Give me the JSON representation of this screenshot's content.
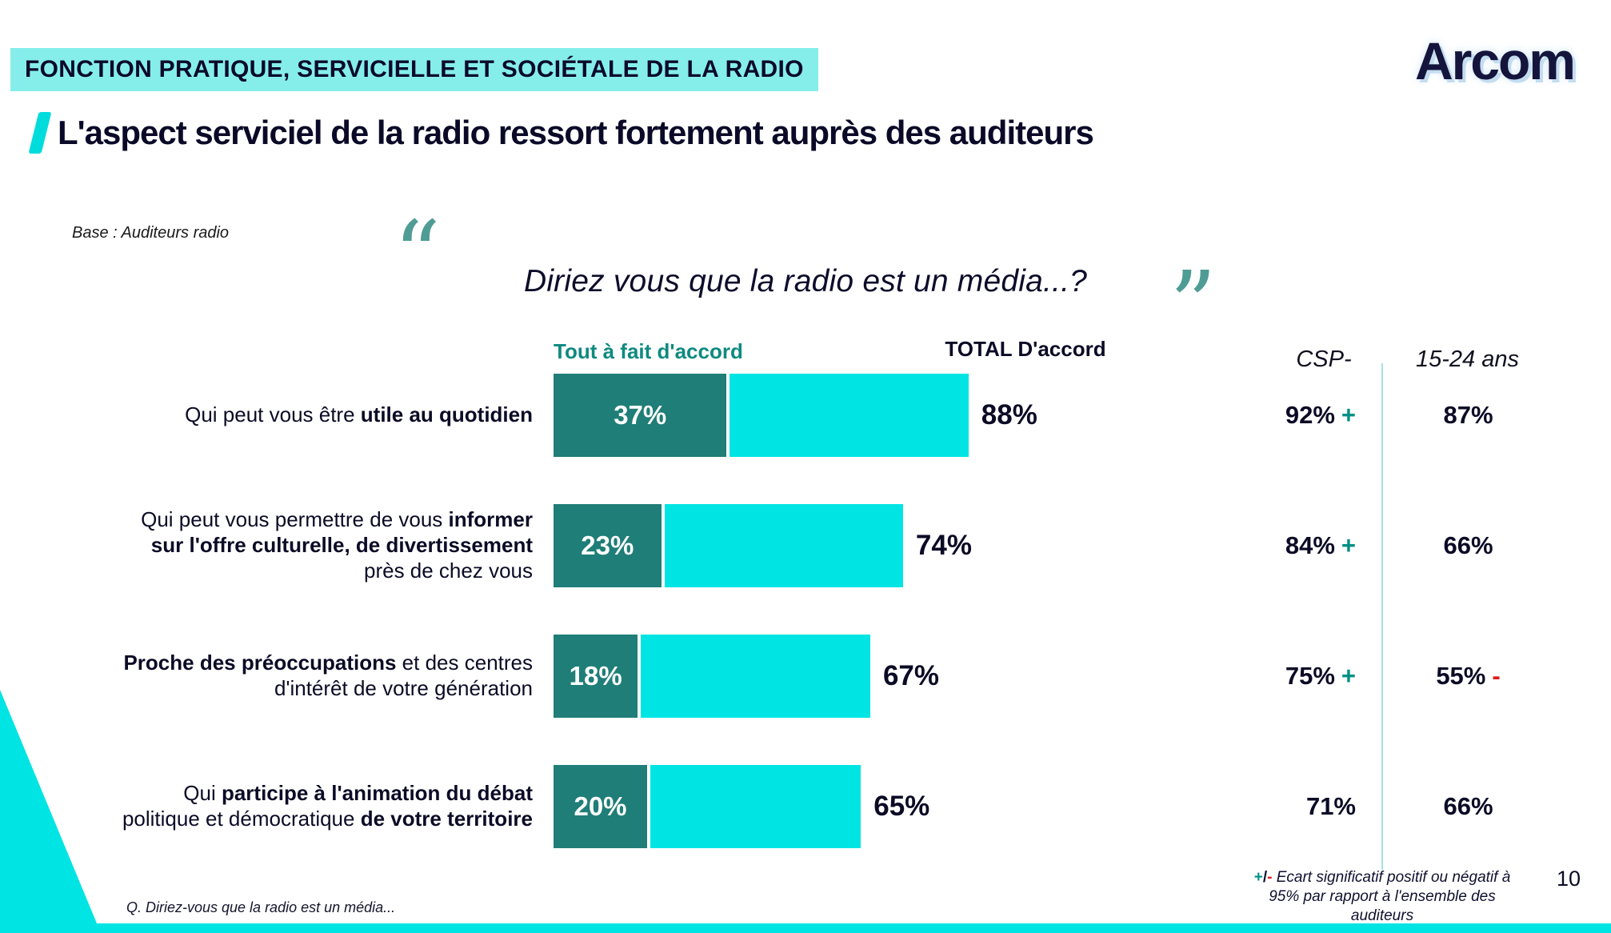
{
  "header": {
    "banner": "FONCTION PRATIQUE, SERVICIELLE ET SOCIÉTALE DE LA RADIO",
    "logo_text": "Arcom",
    "title": "L'aspect serviciel de la radio ressort fortement auprès des auditeurs",
    "base_note": "Base : Auditeurs radio",
    "question": "Diriez vous que la radio est un média...?"
  },
  "icons": {
    "open_quote": "“",
    "close_quote": "”"
  },
  "columns": {
    "strong": "Tout à fait d'accord",
    "total": "TOTAL D'accord",
    "csp": "CSP-",
    "young": "15-24 ans"
  },
  "legend": {
    "plus": "+",
    "slash": "/",
    "minus": "-",
    "line1": " Ecart significatif positif ou négatif à",
    "line2": "95% par rapport à l'ensemble des",
    "line3": "auditeurs"
  },
  "footer": {
    "question_note": "Q. Diriez-vous que la radio est un média...",
    "page_number": "10"
  },
  "colors": {
    "cyan": "#00E5E3",
    "teal_dark": "#1F7E77",
    "banner_bg": "#85EEEB",
    "navy": "#0B0B26",
    "plus": "#009086",
    "minus": "#E01B1B"
  },
  "chart_data": {
    "type": "bar",
    "orientation": "horizontal",
    "title": "Diriez vous que la radio est un média...?",
    "unit": "%",
    "axis_max": 100,
    "series_labels": {
      "strong": "Tout à fait d'accord",
      "total": "TOTAL D'accord"
    },
    "extra_columns": [
      "CSP-",
      "15-24 ans"
    ],
    "rows": [
      {
        "label_parts": [
          {
            "text": "Qui peut vous être ",
            "bold": false
          },
          {
            "text": "utile au quotidien",
            "bold": true
          }
        ],
        "strong": 37,
        "total": 88,
        "csp": 92,
        "csp_sign": "+",
        "young": 87,
        "young_sign": ""
      },
      {
        "label_parts": [
          {
            "text": "Qui peut vous permettre de vous ",
            "bold": false
          },
          {
            "text": "informer sur l'offre culturelle, de divertissement",
            "bold": true
          },
          {
            "text": " près de chez vous",
            "bold": false
          }
        ],
        "strong": 23,
        "total": 74,
        "csp": 84,
        "csp_sign": "+",
        "young": 66,
        "young_sign": ""
      },
      {
        "label_parts": [
          {
            "text": "Proche des préoccupations",
            "bold": true
          },
          {
            "text": " et des centres d'intérêt de votre génération",
            "bold": false
          }
        ],
        "strong": 18,
        "total": 67,
        "csp": 75,
        "csp_sign": "+",
        "young": 55,
        "young_sign": "-"
      },
      {
        "label_parts": [
          {
            "text": "Qui ",
            "bold": false
          },
          {
            "text": "participe à l'animation du débat",
            "bold": true
          },
          {
            "text": " politique et démocratique ",
            "bold": false
          },
          {
            "text": "de votre territoire",
            "bold": true
          }
        ],
        "strong": 20,
        "total": 65,
        "csp": 71,
        "csp_sign": "",
        "young": 66,
        "young_sign": ""
      }
    ]
  }
}
